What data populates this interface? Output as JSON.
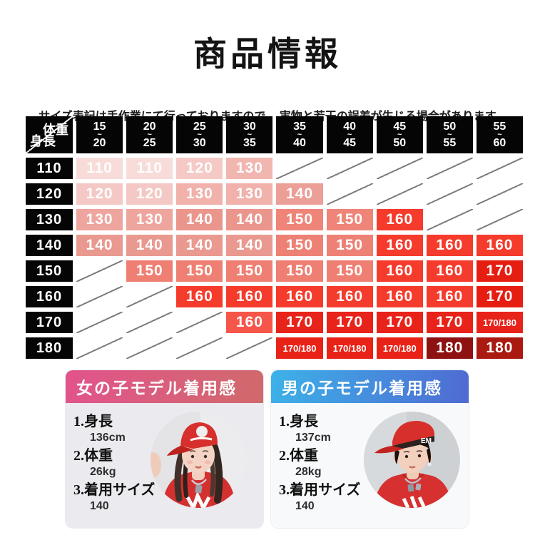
{
  "page": {
    "title": "商品情報",
    "note": "サイズ表記は手作業にて行っておりますので、 実物と若干の誤差が生じる場合があります"
  },
  "size_table": {
    "corner": {
      "top_right": "体重",
      "bottom_left": "身長"
    },
    "tilde": "~",
    "header_bg": "#050505",
    "weight_columns": [
      {
        "from": "15",
        "to": "20"
      },
      {
        "from": "20",
        "to": "25"
      },
      {
        "from": "25",
        "to": "30"
      },
      {
        "from": "30",
        "to": "35"
      },
      {
        "from": "35",
        "to": "40"
      },
      {
        "from": "40",
        "to": "45"
      },
      {
        "from": "45",
        "to": "50"
      },
      {
        "from": "50",
        "to": "55"
      },
      {
        "from": "55",
        "to": "60"
      }
    ],
    "rows": [
      {
        "height": "110",
        "cells": [
          {
            "v": "110",
            "c": "#f7dcda"
          },
          {
            "v": "110",
            "c": "#f7dcda"
          },
          {
            "v": "120",
            "c": "#f5cac6"
          },
          {
            "v": "130",
            "c": "#f1b6b0"
          },
          null,
          null,
          null,
          null,
          null
        ]
      },
      {
        "height": "120",
        "cells": [
          {
            "v": "120",
            "c": "#f4c9c5"
          },
          {
            "v": "120",
            "c": "#f4c9c5"
          },
          {
            "v": "130",
            "c": "#f0b2ab"
          },
          {
            "v": "130",
            "c": "#f0b2ab"
          },
          {
            "v": "140",
            "c": "#eb9f96"
          },
          null,
          null,
          null,
          null
        ]
      },
      {
        "height": "130",
        "cells": [
          {
            "v": "130",
            "c": "#eda59e"
          },
          {
            "v": "130",
            "c": "#eda59e"
          },
          {
            "v": "140",
            "c": "#ea968d"
          },
          {
            "v": "140",
            "c": "#ea968d"
          },
          {
            "v": "150",
            "c": "#ef8478"
          },
          {
            "v": "150",
            "c": "#ef8478"
          },
          {
            "v": "160",
            "c": "#f53b2c"
          },
          null,
          null
        ]
      },
      {
        "height": "140",
        "cells": [
          {
            "v": "140",
            "c": "#e9998f"
          },
          {
            "v": "140",
            "c": "#e9998f"
          },
          {
            "v": "140",
            "c": "#e9998f"
          },
          {
            "v": "140",
            "c": "#e9998f"
          },
          {
            "v": "150",
            "c": "#ee8175"
          },
          {
            "v": "150",
            "c": "#ee8175"
          },
          {
            "v": "160",
            "c": "#f53b2c"
          },
          {
            "v": "160",
            "c": "#f53b2c"
          },
          {
            "v": "160",
            "c": "#f53b2c"
          }
        ]
      },
      {
        "height": "150",
        "cells": [
          null,
          {
            "v": "150",
            "c": "#ee7f72"
          },
          {
            "v": "150",
            "c": "#ee7f72"
          },
          {
            "v": "150",
            "c": "#ee7f72"
          },
          {
            "v": "150",
            "c": "#ee7f72"
          },
          {
            "v": "150",
            "c": "#ee7f72"
          },
          {
            "v": "160",
            "c": "#f53b2c"
          },
          {
            "v": "160",
            "c": "#f53b2c"
          },
          {
            "v": "170",
            "c": "#e61d11"
          }
        ]
      },
      {
        "height": "160",
        "cells": [
          null,
          null,
          {
            "v": "160",
            "c": "#f53b2c"
          },
          {
            "v": "160",
            "c": "#f53b2c"
          },
          {
            "v": "160",
            "c": "#f53b2c"
          },
          {
            "v": "160",
            "c": "#f53b2c"
          },
          {
            "v": "160",
            "c": "#f53b2c"
          },
          {
            "v": "160",
            "c": "#f53b2c"
          },
          {
            "v": "170",
            "c": "#e61d11"
          }
        ]
      },
      {
        "height": "170",
        "cells": [
          null,
          null,
          null,
          {
            "v": "160",
            "c": "#f6564a"
          },
          {
            "v": "170",
            "c": "#e7231a"
          },
          {
            "v": "170",
            "c": "#e7231a"
          },
          {
            "v": "170",
            "c": "#e7231a"
          },
          {
            "v": "170",
            "c": "#e7231a"
          },
          {
            "v": "170/180",
            "c": "#e7231a"
          }
        ]
      },
      {
        "height": "180",
        "cells": [
          null,
          null,
          null,
          null,
          {
            "v": "170/180",
            "c": "#e92217"
          },
          {
            "v": "170/180",
            "c": "#e92217"
          },
          {
            "v": "170/180",
            "c": "#e92217"
          },
          {
            "v": "180",
            "c": "#8e1212"
          },
          {
            "v": "180",
            "c": "#aa1a10"
          }
        ]
      }
    ]
  },
  "cards": [
    {
      "title": "女の子モデル着用感",
      "header_gradient": [
        "#e2538c",
        "#d06a6b"
      ],
      "body_bg": "#eaeaef",
      "items": [
        {
          "label": "1.身長",
          "value": "136cm"
        },
        {
          "label": "2.体重",
          "value": "26kg"
        },
        {
          "label": "3.着用サイズ",
          "value": "140"
        }
      ]
    },
    {
      "title": "男の子モデル着用感",
      "header_gradient": [
        "#3cb2e9",
        "#4f6ad2"
      ],
      "body_bg": "#f8f9fb",
      "cap_text": "EM",
      "items": [
        {
          "label": "1.身長",
          "value": "137cm"
        },
        {
          "label": "2.体重",
          "value": "28kg"
        },
        {
          "label": "3.着用サイズ",
          "value": "140"
        }
      ]
    }
  ]
}
